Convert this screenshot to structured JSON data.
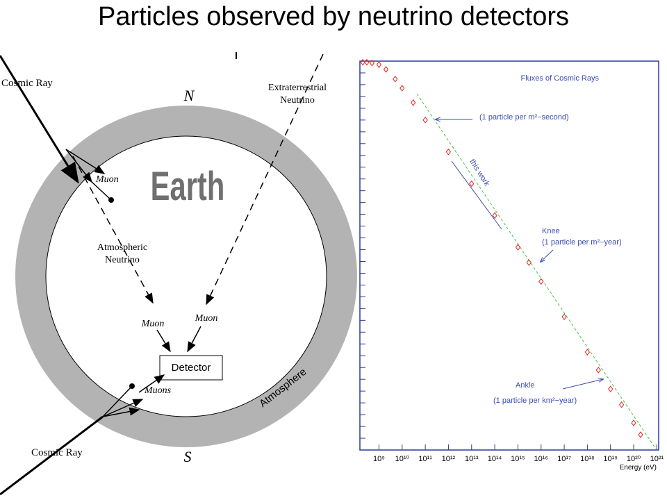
{
  "title": "Particles observed by neutrino detectors",
  "diagram": {
    "labels": {
      "cosmic_ray_top": "Cosmic Ray",
      "north": "N",
      "extraterrestrial_neutrino": [
        "Extraterrestrial",
        "Neutrino"
      ],
      "muon_top": "Muon",
      "earth": "Earth",
      "atmospheric_neutrino": [
        "Atmospheric",
        "Neutrino"
      ],
      "muon_left": "Muon",
      "muon_right": "Muon",
      "detector": "Detector",
      "muons": "Muons",
      "atmosphere": "Atmosphere",
      "cosmic_ray_bottom": "Cosmic Ray",
      "south": "S"
    }
  },
  "chart_data": {
    "type": "scatter",
    "title": "Fluxes of Cosmic Rays",
    "x_label": "Energy (eV)",
    "x_log": true,
    "y_log": true,
    "xlim": [
      150000000.0,
      1.2e+21
    ],
    "ylim": [
      1e-29,
      10000.0
    ],
    "xticks": [
      {
        "value": 1000000000.0,
        "label": "10⁹"
      },
      {
        "value": 10000000000.0,
        "label": "10¹⁰"
      },
      {
        "value": 100000000000.0,
        "label": "10¹¹"
      },
      {
        "value": 1000000000000.0,
        "label": "10¹²"
      },
      {
        "value": 10000000000000.0,
        "label": "10¹³"
      },
      {
        "value": 100000000000000.0,
        "label": "10¹⁴"
      },
      {
        "value": 1000000000000000.0,
        "label": "10¹⁵"
      },
      {
        "value": 1e+16,
        "label": "10¹⁶"
      },
      {
        "value": 1e+17,
        "label": "10¹⁷"
      },
      {
        "value": 1e+18,
        "label": "10¹⁸"
      },
      {
        "value": 1e+19,
        "label": "10¹⁹"
      },
      {
        "value": 1e+20,
        "label": "10²⁰"
      },
      {
        "value": 1e+21,
        "label": "10²¹"
      }
    ],
    "yticks": [
      10000.0,
      1000.0,
      100.0,
      10.0,
      1.0,
      0.1,
      0.01,
      0.001,
      0.0001,
      1e-05,
      1e-06,
      1e-07,
      1e-08,
      1e-09,
      1e-10,
      1e-11,
      1e-12,
      1e-13,
      1e-14,
      1e-15,
      1e-16,
      1e-17,
      1e-18,
      1e-19,
      1e-20,
      1e-21,
      1e-22,
      1e-23,
      1e-24,
      1e-25,
      1e-26,
      1e-27,
      1e-28,
      1e-29
    ],
    "series": [
      {
        "color": "#e8231f",
        "x": [
          200000000.0,
          300000000.0,
          500000000.0,
          1000000000.0,
          2000000000.0,
          5000000000.0,
          10000000000.0,
          30000000000.0,
          100000000000.0,
          1000000000000.0,
          10000000000000.0,
          100000000000000.0,
          1000000000000000.0,
          3000000000000000.0,
          1e+16,
          1e+17,
          1e+18,
          3e+18,
          1e+19,
          3e+19,
          1e+20,
          2e+20
        ],
        "values": [
          8000.0,
          8000.0,
          7000.0,
          5000.0,
          2000.0,
          300.0,
          50.0,
          3.0,
          0.1,
          0.0002,
          4e-07,
          8e-10,
          1.6e-12,
          8e-14,
          2e-15,
          2e-18,
          2e-21,
          6e-23,
          1.5e-24,
          7e-26,
          2e-27,
          2e-28
        ]
      }
    ],
    "annotations": [
      "(1 particle per m²−second)",
      "this work",
      "Knee",
      "(1 particle per m²−year)",
      "Ankle",
      "(1 particle per km²−year)"
    ]
  }
}
